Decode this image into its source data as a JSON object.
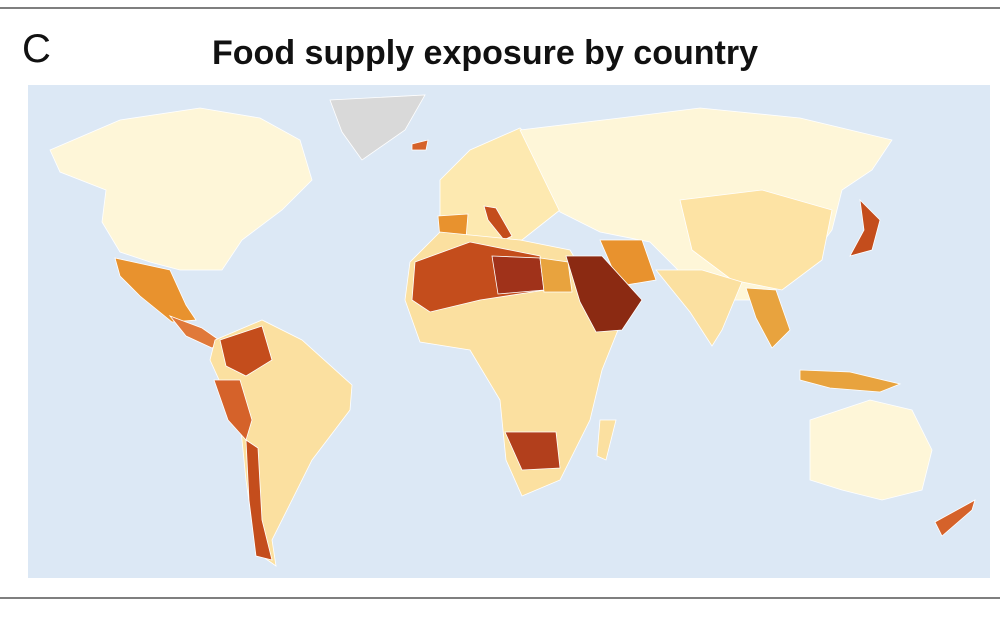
{
  "panel_label": "C",
  "title": "Food supply exposure by country"
}
